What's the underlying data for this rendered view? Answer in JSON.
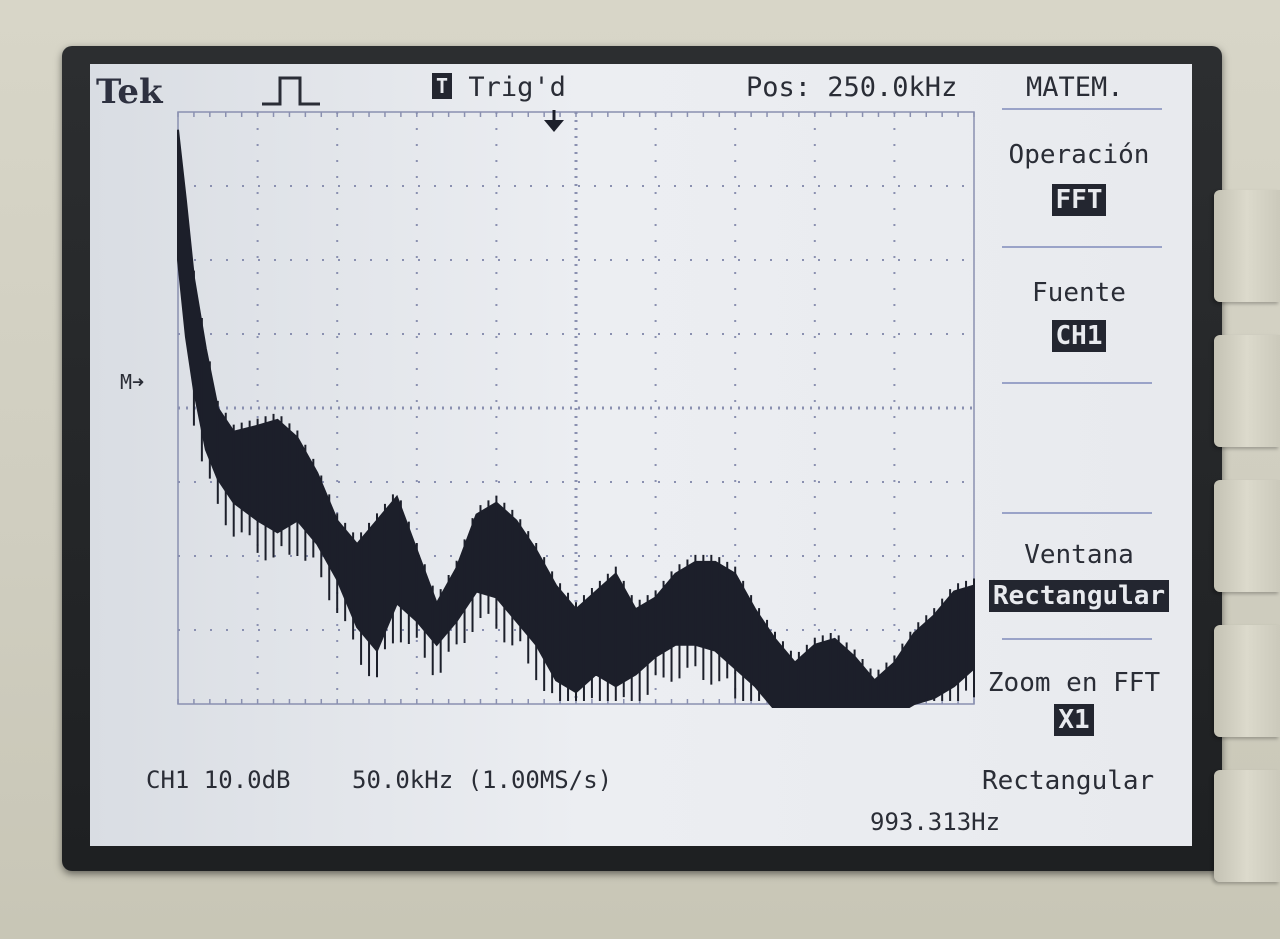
{
  "header": {
    "brand": "Tek",
    "trigger_badge": "T",
    "trigger_status": "Trig'd",
    "position": "Pos: 250.0kHz",
    "menu_title": "MATEM."
  },
  "menu": {
    "operation": {
      "label": "Operación",
      "value": "FFT"
    },
    "source": {
      "label": "Fuente",
      "value": "CH1"
    },
    "window": {
      "label": "Ventana",
      "value": "Rectangular"
    },
    "zoom": {
      "label": "Zoom en FFT",
      "value": "X1"
    }
  },
  "footer": {
    "channel_scale": "CH1 10.0dB",
    "freq_scale": "50.0kHz (1.00MS/s)",
    "window_name": "Rectangular",
    "frequency_readout": "993.313Hz"
  },
  "marker": {
    "label": "M"
  },
  "chart_data": {
    "type": "line",
    "x": [
      0,
      0.1,
      0.2,
      0.35,
      0.5,
      0.7,
      1.0,
      1.25,
      1.5,
      1.75,
      2.0,
      2.25,
      2.5,
      2.75,
      3.0,
      3.25,
      3.5,
      3.75,
      4.0,
      4.25,
      4.5,
      4.75,
      5.0,
      5.25,
      5.5,
      5.75,
      6.0,
      6.25,
      6.5,
      6.75,
      7.0,
      7.25,
      7.5,
      7.75,
      8.0,
      8.25,
      8.5,
      8.75,
      9.0,
      9.25,
      9.5,
      9.75,
      10.0
    ],
    "upper": [
      4.7,
      3.5,
      2.2,
      1.0,
      0.0,
      -0.4,
      -0.3,
      -0.2,
      -0.5,
      -1.1,
      -1.9,
      -2.3,
      -1.9,
      -1.5,
      -2.4,
      -3.3,
      -2.7,
      -1.8,
      -1.6,
      -1.9,
      -2.4,
      -3.0,
      -3.4,
      -3.1,
      -2.8,
      -3.4,
      -3.2,
      -2.8,
      -2.6,
      -2.6,
      -2.8,
      -3.4,
      -3.9,
      -4.3,
      -4.0,
      -3.9,
      -4.2,
      -4.6,
      -4.3,
      -3.8,
      -3.5,
      -3.1,
      -3.0
    ],
    "lower": [
      2.5,
      1.2,
      0.3,
      -0.7,
      -1.2,
      -1.6,
      -1.9,
      -2.1,
      -1.9,
      -2.3,
      -2.9,
      -3.7,
      -4.1,
      -3.3,
      -3.6,
      -4.0,
      -3.6,
      -3.1,
      -3.2,
      -3.6,
      -4.0,
      -4.6,
      -4.8,
      -4.5,
      -4.7,
      -4.5,
      -4.2,
      -4.0,
      -4.0,
      -4.1,
      -4.4,
      -4.7,
      -5.1,
      -5.2,
      -5.1,
      -5.2,
      -5.4,
      -5.3,
      -5.2,
      -5.0,
      -4.9,
      -4.7,
      -4.4
    ],
    "ylim": [
      -5,
      5
    ],
    "xlim": [
      0,
      10
    ],
    "grid": true,
    "trace_color": "#1c1f2a",
    "grid_color": "#8a90b0"
  }
}
